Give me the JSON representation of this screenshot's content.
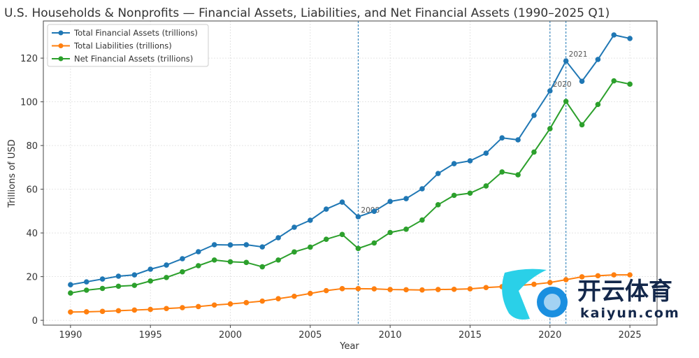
{
  "chart_data": {
    "type": "line",
    "title": "U.S. Households & Nonprofits — Financial Assets, Liabilities, and Net Financial Assets (1990–2025 Q1)",
    "xlabel": "Year",
    "ylabel": "Trillions of USD",
    "xlim": [
      1988.3,
      2026.7
    ],
    "ylim": [
      -2.2,
      137
    ],
    "xticks": [
      1990,
      1995,
      2000,
      2005,
      2010,
      2015,
      2020,
      2025
    ],
    "yticks": [
      0,
      20,
      40,
      60,
      80,
      100,
      120
    ],
    "grid": true,
    "legend_position": "top-left",
    "x": [
      1990,
      1991,
      1992,
      1993,
      1994,
      1995,
      1996,
      1997,
      1998,
      1999,
      2000,
      2001,
      2002,
      2003,
      2004,
      2005,
      2006,
      2007,
      2008,
      2009,
      2010,
      2011,
      2012,
      2013,
      2014,
      2015,
      2016,
      2017,
      2018,
      2019,
      2020,
      2021,
      2022,
      2023,
      2024,
      2025
    ],
    "series": [
      {
        "name": "Total Financial Assets (trillions)",
        "color": "#1f77b4",
        "values": [
          16.3,
          17.6,
          18.9,
          20.2,
          20.8,
          23.4,
          25.3,
          28.2,
          31.4,
          34.6,
          34.5,
          34.6,
          33.6,
          37.8,
          42.6,
          45.8,
          50.9,
          54.1,
          47.4,
          49.9,
          54.4,
          55.7,
          60.2,
          67.2,
          71.7,
          73.0,
          76.5,
          83.5,
          82.6,
          93.8,
          105.0,
          118.7,
          109.4,
          119.4,
          130.6,
          129.0
        ]
      },
      {
        "name": "Total Liabilities (trillions)",
        "color": "#ff7f0e",
        "values": [
          3.8,
          3.9,
          4.1,
          4.4,
          4.7,
          5.0,
          5.4,
          5.8,
          6.3,
          7.0,
          7.5,
          8.1,
          8.8,
          9.9,
          11.0,
          12.3,
          13.6,
          14.5,
          14.5,
          14.4,
          14.1,
          14.0,
          13.9,
          14.1,
          14.2,
          14.4,
          15.0,
          15.4,
          15.9,
          16.5,
          17.3,
          18.6,
          19.9,
          20.4,
          20.8,
          20.8
        ]
      },
      {
        "name": "Net Financial Assets (trillions)",
        "color": "#2ca02c",
        "values": [
          12.5,
          13.8,
          14.6,
          15.6,
          16.0,
          18.0,
          19.6,
          22.2,
          25.0,
          27.6,
          26.8,
          26.5,
          24.5,
          27.6,
          31.3,
          33.5,
          37.1,
          39.3,
          32.9,
          35.4,
          40.2,
          41.7,
          45.9,
          52.9,
          57.2,
          58.2,
          61.5,
          67.9,
          66.6,
          77.0,
          87.7,
          100.2,
          89.5,
          98.8,
          109.6,
          108.1
        ]
      }
    ],
    "annotations": [
      {
        "year": 2008,
        "label": "2008",
        "value": 47.4
      },
      {
        "year": 2020,
        "label": "2020",
        "value": 105.0
      },
      {
        "year": 2021,
        "label": "2021",
        "value": 118.7
      }
    ]
  },
  "watermark": {
    "cn": "开云体育",
    "en": "kaiyun.com"
  }
}
